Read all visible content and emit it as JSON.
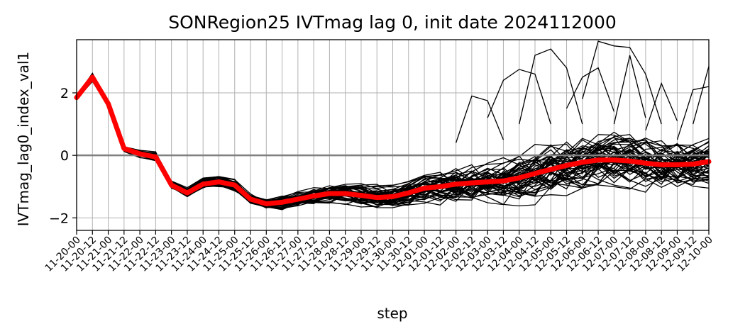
{
  "chart_data": {
    "type": "line",
    "title": "SONRegion25 IVTmag lag 0, init date 2024112000",
    "xlabel": "step",
    "ylabel": "IVTmag_lag0_index_val1",
    "ylim": [
      -2.4,
      3.7
    ],
    "yticks": [
      -2,
      0,
      2
    ],
    "grid": true,
    "x": [
      "11-20-00",
      "11-20-12",
      "11-21-00",
      "11-21-12",
      "11-22-00",
      "11-22-12",
      "11-23-00",
      "11-23-12",
      "11-24-00",
      "11-24-12",
      "11-25-00",
      "11-25-12",
      "11-26-00",
      "11-26-12",
      "11-27-00",
      "11-27-12",
      "11-28-00",
      "11-28-12",
      "11-29-00",
      "11-29-12",
      "11-30-00",
      "11-30-12",
      "12-01-00",
      "12-01-12",
      "12-02-00",
      "12-02-12",
      "12-03-00",
      "12-03-12",
      "12-04-00",
      "12-04-12",
      "12-05-00",
      "12-05-12",
      "12-06-00",
      "12-06-12",
      "12-07-00",
      "12-07-12",
      "12-08-00",
      "12-08-12",
      "12-09-00",
      "12-09-12",
      "12-10-00"
    ],
    "reference_line": {
      "y": 0,
      "color": "#808080"
    },
    "series": [
      {
        "color": "#ff0000",
        "values": [
          1.85,
          2.5,
          1.65,
          0.22,
          0.05,
          -0.05,
          -0.95,
          -1.2,
          -0.92,
          -0.85,
          -0.95,
          -1.4,
          -1.55,
          -1.5,
          -1.4,
          -1.3,
          -1.22,
          -1.22,
          -1.28,
          -1.35,
          -1.32,
          -1.2,
          -1.05,
          -1.0,
          -0.92,
          -0.88,
          -0.85,
          -0.82,
          -0.72,
          -0.58,
          -0.45,
          -0.32,
          -0.22,
          -0.15,
          -0.15,
          -0.18,
          -0.25,
          -0.3,
          -0.3,
          -0.28,
          -0.2
        ]
      }
    ],
    "ensemble": {
      "members": 50,
      "color": "#000000",
      "center": [
        1.85,
        2.5,
        1.65,
        0.22,
        0.05,
        -0.05,
        -0.95,
        -1.2,
        -0.92,
        -0.85,
        -0.95,
        -1.4,
        -1.55,
        -1.5,
        -1.4,
        -1.3,
        -1.22,
        -1.22,
        -1.28,
        -1.35,
        -1.32,
        -1.2,
        -1.05,
        -1.0,
        -0.92,
        -0.88,
        -0.85,
        -0.82,
        -0.72,
        -0.58,
        -0.45,
        -0.32,
        -0.22,
        -0.15,
        -0.15,
        -0.18,
        -0.25,
        -0.3,
        -0.3,
        -0.28,
        -0.2
      ],
      "spread": [
        0.05,
        0.12,
        0.08,
        0.1,
        0.12,
        0.15,
        0.15,
        0.15,
        0.2,
        0.2,
        0.2,
        0.15,
        0.17,
        0.25,
        0.25,
        0.28,
        0.3,
        0.3,
        0.32,
        0.35,
        0.35,
        0.4,
        0.45,
        0.5,
        0.55,
        0.6,
        0.65,
        0.7,
        0.75,
        0.8,
        0.85,
        0.9,
        0.9,
        0.9,
        0.9,
        0.85,
        0.85,
        0.8,
        0.8,
        0.8,
        0.85
      ],
      "outliers": [
        [
          [
            24,
            0.4
          ],
          [
            25,
            1.9
          ],
          [
            26,
            1.75
          ],
          [
            27,
            0.5
          ]
        ],
        [
          [
            26,
            1.2
          ],
          [
            27,
            2.4
          ],
          [
            28,
            2.75
          ],
          [
            29,
            2.6
          ],
          [
            30,
            1.0
          ]
        ],
        [
          [
            28,
            1.0
          ],
          [
            29,
            3.2
          ],
          [
            30,
            3.4
          ],
          [
            31,
            2.8
          ],
          [
            32,
            1.0
          ]
        ],
        [
          [
            31,
            1.5
          ],
          [
            32,
            2.5
          ],
          [
            33,
            2.8
          ],
          [
            34,
            1.4
          ]
        ],
        [
          [
            32,
            1.8
          ],
          [
            33,
            3.65
          ],
          [
            34,
            3.5
          ],
          [
            35,
            3.45
          ],
          [
            36,
            2.6
          ],
          [
            37,
            1.0
          ]
        ],
        [
          [
            34,
            1.0
          ],
          [
            35,
            3.2
          ],
          [
            36,
            1.2
          ]
        ],
        [
          [
            36,
            0.8
          ],
          [
            37,
            2.3
          ],
          [
            38,
            1.1
          ]
        ],
        [
          [
            39,
            1.0
          ],
          [
            40,
            2.85
          ]
        ],
        [
          [
            38,
            0.5
          ],
          [
            39,
            2.1
          ],
          [
            40,
            2.2
          ]
        ]
      ]
    }
  }
}
